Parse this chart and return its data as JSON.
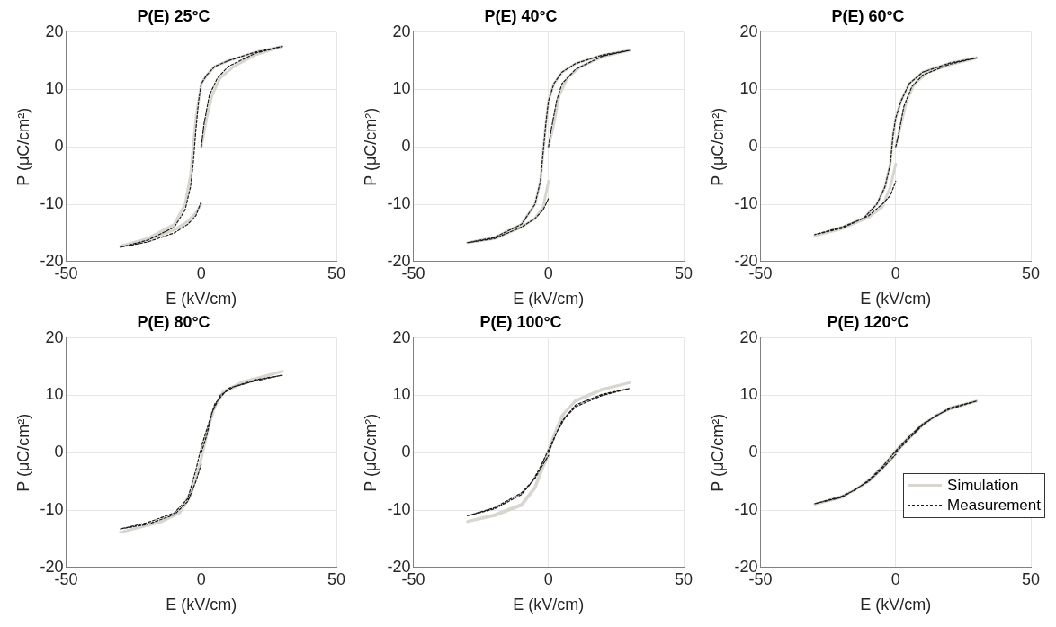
{
  "chart_data": [
    {
      "type": "line",
      "title": "P(E) 25°C",
      "xlabel": "E (kV/cm)",
      "ylabel": "P (μC/cm²)",
      "xlim": [
        -50,
        50
      ],
      "xticks": [
        -50,
        0,
        50
      ],
      "ylim": [
        -20,
        20
      ],
      "yticks": [
        -20,
        -10,
        0,
        10,
        20
      ],
      "grid": true,
      "legend": false,
      "series": [
        {
          "color": "#d9d6d0",
          "line_style": "solid",
          "x": [
            0,
            2,
            4,
            7,
            12,
            20,
            30,
            20,
            10,
            5,
            2,
            0,
            -2,
            -3,
            -4,
            -6,
            -10,
            -20,
            -30,
            -20,
            -10,
            -5,
            -2,
            0
          ],
          "values": [
            0,
            5,
            9,
            12,
            14,
            16,
            17.5,
            16.5,
            15,
            14,
            12.5,
            11,
            5,
            0,
            -5,
            -10,
            -13.5,
            -16,
            -17.3,
            -16.2,
            -14.5,
            -13,
            -11.5,
            -10
          ]
        },
        {
          "color": "#1a1a1a",
          "line_style": "dashed",
          "x": [
            0,
            1,
            3,
            6,
            10,
            20,
            30,
            20,
            10,
            5,
            2,
            0,
            -1,
            -2,
            -3,
            -4,
            -6,
            -10,
            -20,
            -30,
            -20,
            -10,
            -5,
            -2,
            0
          ],
          "values": [
            0,
            4,
            9,
            12,
            14,
            16.3,
            17.5,
            16.5,
            15,
            14,
            12.5,
            11,
            8,
            3,
            -3,
            -7,
            -11,
            -14,
            -16.3,
            -17.5,
            -16.6,
            -15,
            -13.5,
            -12,
            -9.5
          ]
        }
      ]
    },
    {
      "type": "line",
      "title": "P(E) 40°C",
      "xlabel": "E (kV/cm)",
      "ylabel": "P (μC/cm²)",
      "xlim": [
        -50,
        50
      ],
      "xticks": [
        -50,
        0,
        50
      ],
      "ylim": [
        -20,
        20
      ],
      "yticks": [
        -20,
        -10,
        0,
        10,
        20
      ],
      "grid": true,
      "legend": false,
      "series": [
        {
          "color": "#d9d6d0",
          "line_style": "solid",
          "x": [
            0,
            2,
            4,
            7,
            12,
            20,
            30,
            20,
            10,
            5,
            2,
            0,
            -1,
            -2,
            -3,
            -5,
            -10,
            -20,
            -30,
            -20,
            -10,
            -5,
            -2,
            0
          ],
          "values": [
            0,
            4,
            9,
            12,
            14,
            15.7,
            16.8,
            16,
            14.5,
            13,
            11,
            8,
            4,
            -1,
            -6,
            -10,
            -13.5,
            -15.8,
            -16.7,
            -16,
            -14,
            -12.5,
            -10.5,
            -6
          ]
        },
        {
          "color": "#1a1a1a",
          "line_style": "dashed",
          "x": [
            0,
            1,
            3,
            5,
            10,
            20,
            30,
            20,
            10,
            5,
            2,
            0,
            -1,
            -2,
            -3,
            -5,
            -10,
            -20,
            -30,
            -20,
            -10,
            -5,
            -2,
            0
          ],
          "values": [
            0,
            3,
            8,
            11,
            13.5,
            15.8,
            16.8,
            16,
            14.5,
            13,
            11,
            8,
            4,
            -1,
            -6,
            -10,
            -13.5,
            -15.8,
            -16.7,
            -16,
            -14,
            -12.5,
            -11,
            -9
          ]
        }
      ]
    },
    {
      "type": "line",
      "title": "P(E) 60°C",
      "xlabel": "E (kV/cm)",
      "ylabel": "P (μC/cm²)",
      "xlim": [
        -50,
        50
      ],
      "xticks": [
        -50,
        0,
        50
      ],
      "ylim": [
        -20,
        20
      ],
      "yticks": [
        -20,
        -10,
        0,
        10,
        20
      ],
      "grid": true,
      "legend": false,
      "series": [
        {
          "color": "#d9d6d0",
          "line_style": "solid",
          "x": [
            0,
            2,
            4,
            7,
            12,
            20,
            30,
            20,
            10,
            5,
            2,
            0,
            -1,
            -2,
            -4,
            -7,
            -12,
            -20,
            -30,
            -20,
            -10,
            -5,
            -2,
            0
          ],
          "values": [
            0,
            4,
            8,
            11,
            13,
            14.3,
            15.5,
            14.6,
            13,
            11,
            8,
            5,
            2,
            -3,
            -7,
            -10,
            -12.5,
            -14,
            -15.5,
            -14.3,
            -12.3,
            -10.5,
            -7,
            -3
          ]
        },
        {
          "color": "#1a1a1a",
          "line_style": "dashed",
          "x": [
            0,
            1,
            3,
            6,
            10,
            20,
            30,
            20,
            10,
            5,
            2,
            0,
            -1,
            -2,
            -4,
            -7,
            -12,
            -20,
            -30,
            -20,
            -10,
            -5,
            -2,
            0
          ],
          "values": [
            0,
            2,
            7,
            10.5,
            12.5,
            14.4,
            15.5,
            14.6,
            13,
            11,
            8,
            5,
            2,
            -3,
            -7,
            -10,
            -12.5,
            -14,
            -15.3,
            -14.2,
            -12,
            -10,
            -8.5,
            -6
          ]
        }
      ]
    },
    {
      "type": "line",
      "title": "P(E) 80°C",
      "xlabel": "E (kV/cm)",
      "ylabel": "P (μC/cm²)",
      "xlim": [
        -50,
        50
      ],
      "xticks": [
        -50,
        0,
        50
      ],
      "ylim": [
        -20,
        20
      ],
      "yticks": [
        -20,
        -10,
        0,
        10,
        20
      ],
      "grid": true,
      "legend": false,
      "series": [
        {
          "color": "#d9d6d0",
          "line_style": "solid",
          "x": [
            0,
            2,
            5,
            8,
            15,
            30,
            15,
            8,
            4,
            1,
            -1,
            -4,
            -8,
            -15,
            -30,
            -15,
            -8,
            -3,
            0
          ],
          "values": [
            0,
            3.5,
            8,
            10.5,
            12,
            14.2,
            12.3,
            10.6,
            7,
            1,
            -3,
            -7.5,
            -10.5,
            -12,
            -13.9,
            -12.1,
            -10.5,
            -6,
            -1
          ]
        },
        {
          "color": "#1a1a1a",
          "line_style": "dashed",
          "x": [
            0,
            2,
            4,
            7,
            12,
            20,
            30,
            20,
            10,
            5,
            2,
            0,
            -2,
            -5,
            -10,
            -20,
            -30,
            -20,
            -10,
            -5,
            -2,
            0
          ],
          "values": [
            0,
            3,
            7,
            10,
            11.5,
            12.5,
            13.5,
            12.7,
            11.2,
            8.5,
            4,
            1,
            -3,
            -8,
            -10.5,
            -12.2,
            -13.3,
            -12.5,
            -10.8,
            -8.5,
            -5,
            -2
          ]
        }
      ]
    },
    {
      "type": "line",
      "title": "P(E) 100°C",
      "xlabel": "E (kV/cm)",
      "ylabel": "P (μC/cm²)",
      "xlim": [
        -50,
        50
      ],
      "xticks": [
        -50,
        0,
        50
      ],
      "ylim": [
        -20,
        20
      ],
      "yticks": [
        -20,
        -10,
        0,
        10,
        20
      ],
      "grid": true,
      "legend": false,
      "series": [
        {
          "color": "#d9d6d0",
          "line_style": "solid",
          "x": [
            0,
            3,
            6,
            10,
            20,
            30,
            20,
            10,
            5,
            2,
            0,
            -2,
            -5,
            -10,
            -20,
            -30,
            -20,
            -10,
            -5,
            -2,
            0
          ],
          "values": [
            0,
            4,
            7,
            9,
            11,
            12.2,
            11.1,
            9.1,
            6.5,
            3,
            0.5,
            -2,
            -6,
            -9,
            -10.8,
            -12,
            -11,
            -9.2,
            -6.2,
            -2.5,
            -0.5
          ]
        },
        {
          "color": "#1a1a1a",
          "line_style": "dashed",
          "x": [
            0,
            3,
            6,
            10,
            20,
            30,
            20,
            10,
            5,
            2,
            0,
            -3,
            -6,
            -10,
            -20,
            -30,
            -20,
            -10,
            -5,
            -2,
            0
          ],
          "values": [
            0,
            3.5,
            6,
            8,
            10,
            11.2,
            10.2,
            8.3,
            5.5,
            2.5,
            0.5,
            -2.5,
            -5,
            -7,
            -9.6,
            -11,
            -9.8,
            -7.3,
            -4.5,
            -2,
            -0.5
          ]
        }
      ]
    },
    {
      "type": "line",
      "title": "P(E) 120°C",
      "xlabel": "E (kV/cm)",
      "ylabel": "P (μC/cm²)",
      "xlim": [
        -50,
        50
      ],
      "xticks": [
        -50,
        0,
        50
      ],
      "ylim": [
        -20,
        20
      ],
      "yticks": [
        -20,
        -10,
        0,
        10,
        20
      ],
      "grid": true,
      "legend": "bottom right",
      "series": [
        {
          "name": "Simulation",
          "color": "#d9d6d0",
          "line_style": "solid",
          "x": [
            0,
            5,
            10,
            15,
            20,
            30,
            20,
            10,
            5,
            0,
            -5,
            -10,
            -15,
            -20,
            -30,
            -20,
            -10,
            -5,
            0
          ],
          "values": [
            0,
            2.5,
            4.8,
            6.5,
            7.6,
            9,
            7.8,
            5,
            2.8,
            0.3,
            -2.5,
            -4.8,
            -6.5,
            -7.6,
            -9,
            -7.8,
            -5,
            -2.8,
            -0.3
          ]
        },
        {
          "name": "Measurement",
          "color": "#1a1a1a",
          "line_style": "dashed",
          "x": [
            0,
            5,
            10,
            15,
            20,
            30,
            20,
            10,
            5,
            0,
            -5,
            -10,
            -15,
            -20,
            -30,
            -20,
            -10,
            -5,
            0
          ],
          "values": [
            0,
            2.5,
            4.8,
            6.5,
            7.6,
            9,
            7.8,
            5,
            2.8,
            0.3,
            -2.5,
            -4.8,
            -6.5,
            -7.6,
            -8.9,
            -7.8,
            -5,
            -2.8,
            -0.3
          ]
        }
      ]
    }
  ]
}
